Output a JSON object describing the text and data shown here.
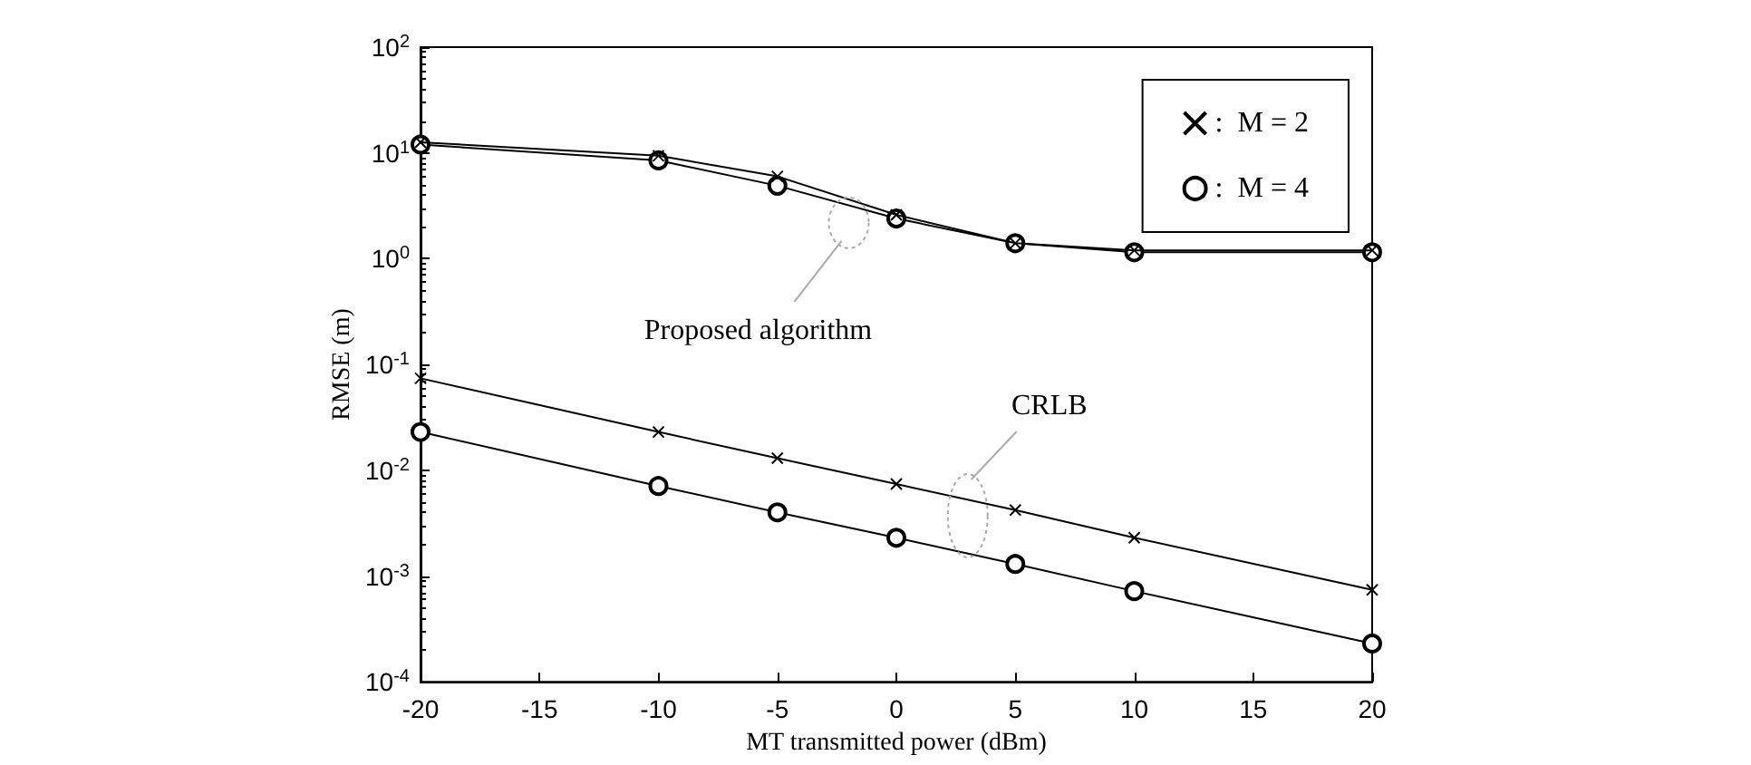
{
  "chart_data": {
    "type": "line",
    "xlabel": "MT transmitted power (dBm)",
    "ylabel": "RMSE (m)",
    "x": [
      -20,
      -10,
      -5,
      0,
      5,
      10,
      20
    ],
    "series": [
      {
        "name": ":  M = 2",
        "color": "#000000",
        "marker": "cross",
        "values": [
          12.6,
          9.4,
          6,
          2.6,
          1.4,
          1.2,
          1.2
        ]
      },
      {
        "name": ":  M = 4",
        "color": "#000000",
        "marker": "circle",
        "values": [
          12,
          8.5,
          4.9,
          2.4,
          1.4,
          1.15,
          1.15
        ]
      },
      {
        "color": "#000000",
        "marker": "cross",
        "values": [
          0.074,
          0.023,
          0.013,
          0.0074,
          0.0042,
          0.0023,
          0.00074
        ]
      },
      {
        "color": "#000000",
        "marker": "circle",
        "values": [
          0.023,
          0.0071,
          0.004,
          0.0023,
          0.0013,
          0.00072,
          0.00023
        ]
      }
    ],
    "annotations": [
      "Proposed algorithm",
      "CRLB"
    ],
    "log": "y",
    "xlim": [
      -20,
      20
    ],
    "xticks": [
      -20,
      -15,
      -10,
      -5,
      0,
      5,
      10,
      15,
      20
    ],
    "ylim": [
      0.0001,
      100
    ],
    "yticks": [
      {
        "value": 0.0001,
        "label": "10$^{-4}$"
      },
      {
        "value": 0.001,
        "label": "10$^{-3}$"
      },
      {
        "value": 0.01,
        "label": "10$^{-2}$"
      },
      {
        "value": 0.1,
        "label": "10$^{-1}$"
      },
      {
        "value": 1,
        "label": "10$^{0}$"
      },
      {
        "value": 10,
        "label": "10$^{1}$"
      },
      {
        "value": 100,
        "label": "10$^{2}$"
      }
    ],
    "legend": "top right",
    "grid": false,
    "line_style": "solid"
  }
}
